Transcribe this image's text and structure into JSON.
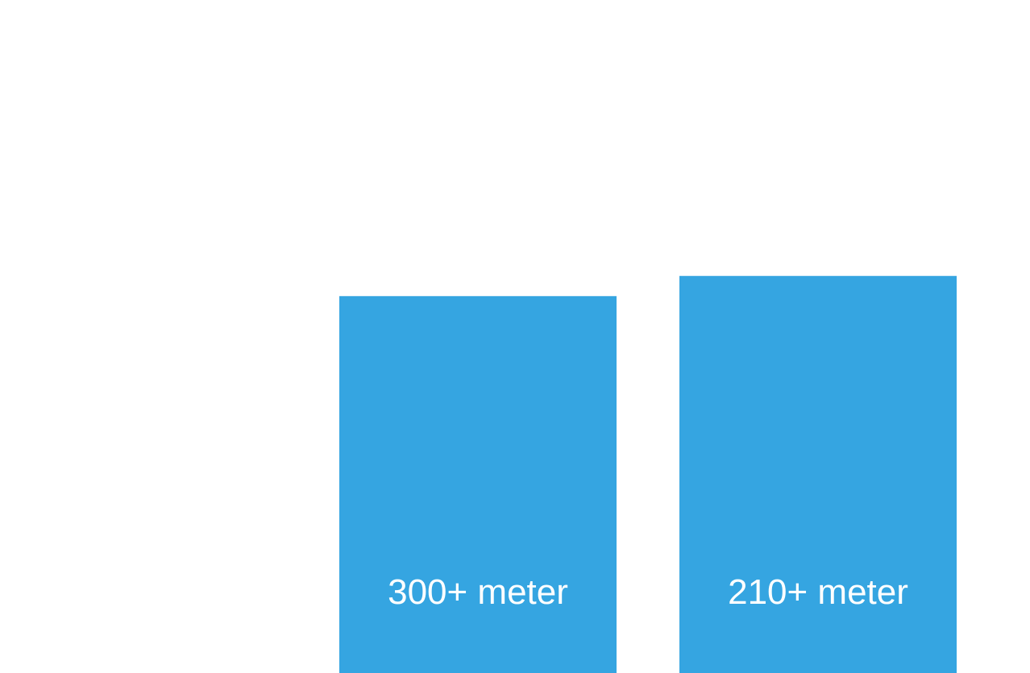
{
  "chart_data": {
    "type": "bar",
    "bars": [
      {
        "label": "300+ meter",
        "value": 0.56
      },
      {
        "label": "210+ meter",
        "value": 0.59
      }
    ],
    "colors": {
      "bar": "#35a5e1",
      "label": "#ffffff"
    },
    "grid": false,
    "legend": "none"
  }
}
